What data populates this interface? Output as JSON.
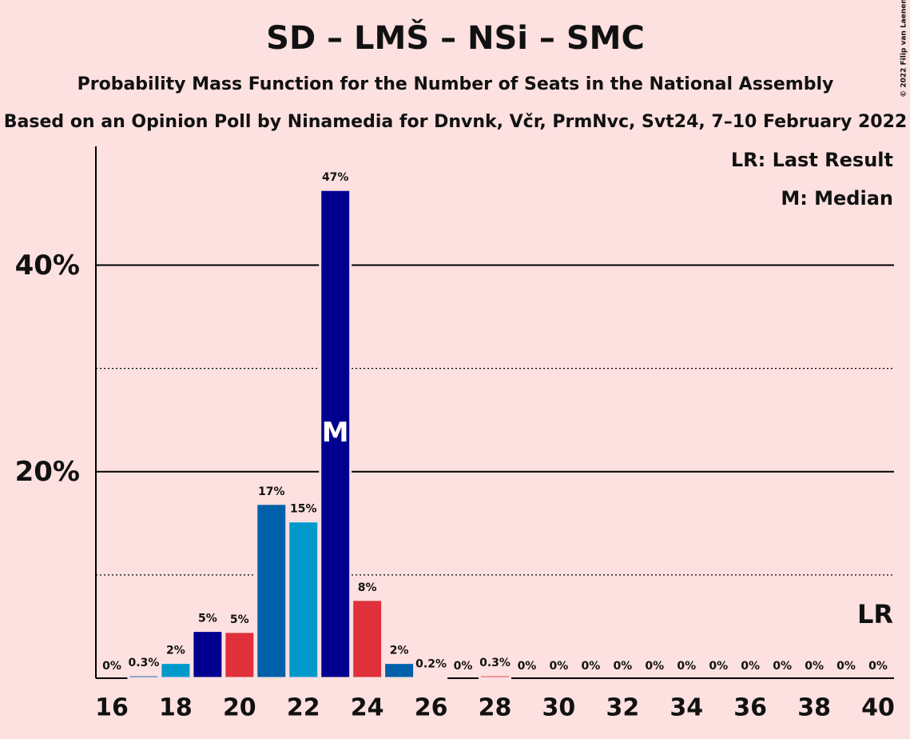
{
  "chart_data": {
    "type": "bar",
    "title": "SD – LMŠ – NSi – SMC",
    "subtitle": "Probability Mass Function for the Number of Seats in the National Assembly",
    "subtitle2": "Based on an Opinion Poll by Ninamedia for Dnvnk, Včr, PrmNvc, Svt24, 7–10 February 2022",
    "copyright": "© 2022 Filip van Laenen",
    "legend": [
      "LR: Last Result",
      "M: Median"
    ],
    "median": 23,
    "median_label": "M",
    "last_result": 40,
    "last_result_label": "LR",
    "x": [
      16,
      17,
      18,
      19,
      20,
      21,
      22,
      23,
      24,
      25,
      26,
      27,
      28,
      29,
      30,
      31,
      32,
      33,
      34,
      35,
      36,
      37,
      38,
      39,
      40
    ],
    "values": [
      0,
      0.3,
      1.5,
      4.6,
      4.5,
      16.9,
      15.2,
      47.3,
      7.6,
      1.5,
      0.2,
      0,
      0.3,
      0,
      0,
      0,
      0,
      0,
      0,
      0,
      0,
      0,
      0,
      0,
      0
    ],
    "value_labels": [
      "0%",
      "0.3%",
      "2%",
      "5%",
      "5%",
      "17%",
      "15%",
      "47%",
      "8%",
      "2%",
      "0.2%",
      "0%",
      "0.3%",
      "0%",
      "0%",
      "0%",
      "0%",
      "0%",
      "0%",
      "0%",
      "0%",
      "0%",
      "0%",
      "0%",
      "0%"
    ],
    "colors": [
      "#e0303a",
      "#0060aa",
      "#0099cc",
      "#000090",
      "#e0303a",
      "#0060aa",
      "#0099cc",
      "#000090",
      "#e0303a",
      "#0060aa",
      "#0099cc",
      "#000090",
      "#e0303a",
      "#0060aa",
      "#0099cc",
      "#000090",
      "#e0303a",
      "#0060aa",
      "#0099cc",
      "#000090",
      "#e0303a",
      "#0060aa",
      "#0099cc",
      "#000090",
      "#e0303a"
    ],
    "xlim": [
      15.5,
      40.5
    ],
    "xticks": [
      16,
      18,
      20,
      22,
      24,
      26,
      28,
      30,
      32,
      34,
      36,
      38,
      40
    ],
    "ylim": [
      0,
      51.5
    ],
    "yticks": [
      {
        "value": 20,
        "label": "20%"
      },
      {
        "value": 40,
        "label": "40%"
      }
    ],
    "minor_yticks": [
      10,
      30
    ]
  }
}
